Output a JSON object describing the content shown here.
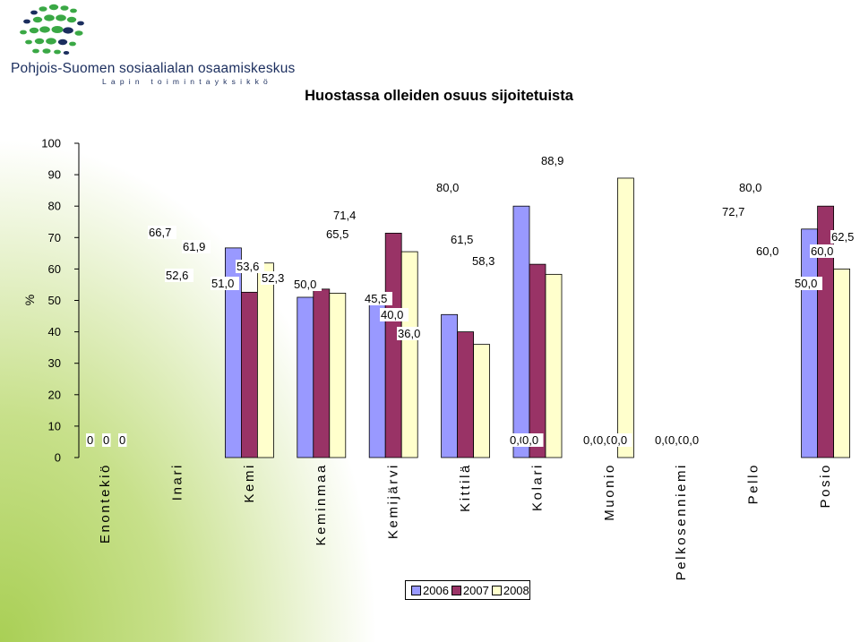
{
  "logo": {
    "name": "Pohjois-Suomen sosiaalialan osaamiskeskus",
    "subtitle": "Lapin toimintayksikkö",
    "colors": {
      "green": "#3aa845",
      "navy": "#1b2e5e"
    }
  },
  "chart_data": {
    "type": "bar",
    "title": "Huostassa olleiden osuus sijoitetuista",
    "ylabel": "%",
    "xlabel": "",
    "ylim": [
      0,
      100
    ],
    "yticks": [
      0,
      10,
      20,
      30,
      40,
      50,
      60,
      70,
      80,
      90,
      100
    ],
    "categories": [
      "Enontekiö",
      "Inari",
      "Kemi",
      "Keminmaa",
      "Kemijärvi",
      "Kittilä",
      "Kolari",
      "Muonio",
      "Pelkosenniemi",
      "Pello",
      "Posio"
    ],
    "series": [
      {
        "name": "2006",
        "color": "#9999ff",
        "values": [
          0,
          66.7,
          51.0,
          50.0,
          45.5,
          80.0,
          0.0,
          0.0,
          0.0,
          72.7,
          50.0
        ],
        "labels": [
          "0",
          "66,7",
          "51,0",
          "50,0",
          "45,5",
          "80,0",
          "0,0",
          "0,0",
          "0,0",
          "72,7",
          "50,0"
        ]
      },
      {
        "name": "2007",
        "color": "#993366",
        "values": [
          0,
          52.6,
          53.6,
          71.4,
          40.0,
          61.5,
          0.0,
          0.0,
          0.0,
          80.0,
          60.0
        ],
        "labels": [
          "0",
          "52,6",
          "53,6",
          "71,4",
          "40,0",
          "61,5",
          "0,0",
          "0,0",
          "0,0",
          "80,0",
          "60,0"
        ]
      },
      {
        "name": "2008",
        "color": "#ffffcc",
        "values": [
          0,
          61.9,
          52.3,
          65.5,
          36.0,
          58.3,
          88.9,
          0.0,
          0.0,
          60.0,
          62.5
        ],
        "labels": [
          "0",
          "61,9",
          "52,3",
          "65,5",
          "36,0",
          "58,3",
          "88,9",
          "0,0",
          "0,0",
          "60,0",
          "62,5"
        ]
      }
    ],
    "legend_position": "bottom-center",
    "grid": false
  }
}
